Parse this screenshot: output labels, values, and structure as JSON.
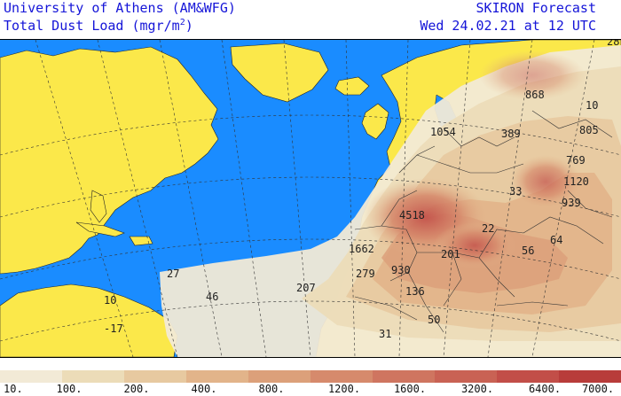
{
  "header": {
    "org": "University of Athens (AM&WFG)",
    "product_prefix": "Total Dust Load (mgr/m",
    "product_sup": "2",
    "product_suffix": ")",
    "model": "SKIRON Forecast",
    "valid_time": "Wed 24.02.21 at 12 UTC"
  },
  "map_labels": [
    {
      "text": "868"
    },
    {
      "text": "10"
    },
    {
      "text": "1054"
    },
    {
      "text": "389"
    },
    {
      "text": "805"
    },
    {
      "text": "769"
    },
    {
      "text": "1120"
    },
    {
      "text": "33"
    },
    {
      "text": "939"
    },
    {
      "text": "4518"
    },
    {
      "text": "22"
    },
    {
      "text": "64"
    },
    {
      "text": "1662"
    },
    {
      "text": "56"
    },
    {
      "text": "201"
    },
    {
      "text": "279"
    },
    {
      "text": "930"
    },
    {
      "text": "27"
    },
    {
      "text": "46"
    },
    {
      "text": "207"
    },
    {
      "text": "136"
    },
    {
      "text": "10"
    },
    {
      "text": "-17"
    },
    {
      "text": "31"
    },
    {
      "text": "50"
    },
    {
      "text": "28"
    }
  ],
  "legend": {
    "colors": [
      "#f2ead6",
      "#ecdcb8",
      "#e7c9a0",
      "#e2b48a",
      "#dca07a",
      "#d68a6c",
      "#cf7560",
      "#c96254",
      "#c24e48",
      "#b83c3a"
    ],
    "labels": [
      "10.",
      "100.",
      "200.",
      "400.",
      "800.",
      "1200.",
      "1600.",
      "3200.",
      "6400.",
      "7000."
    ]
  },
  "colors": {
    "ocean": "#1a8cff",
    "land": "#fbe84a",
    "title": "#1515d8"
  }
}
